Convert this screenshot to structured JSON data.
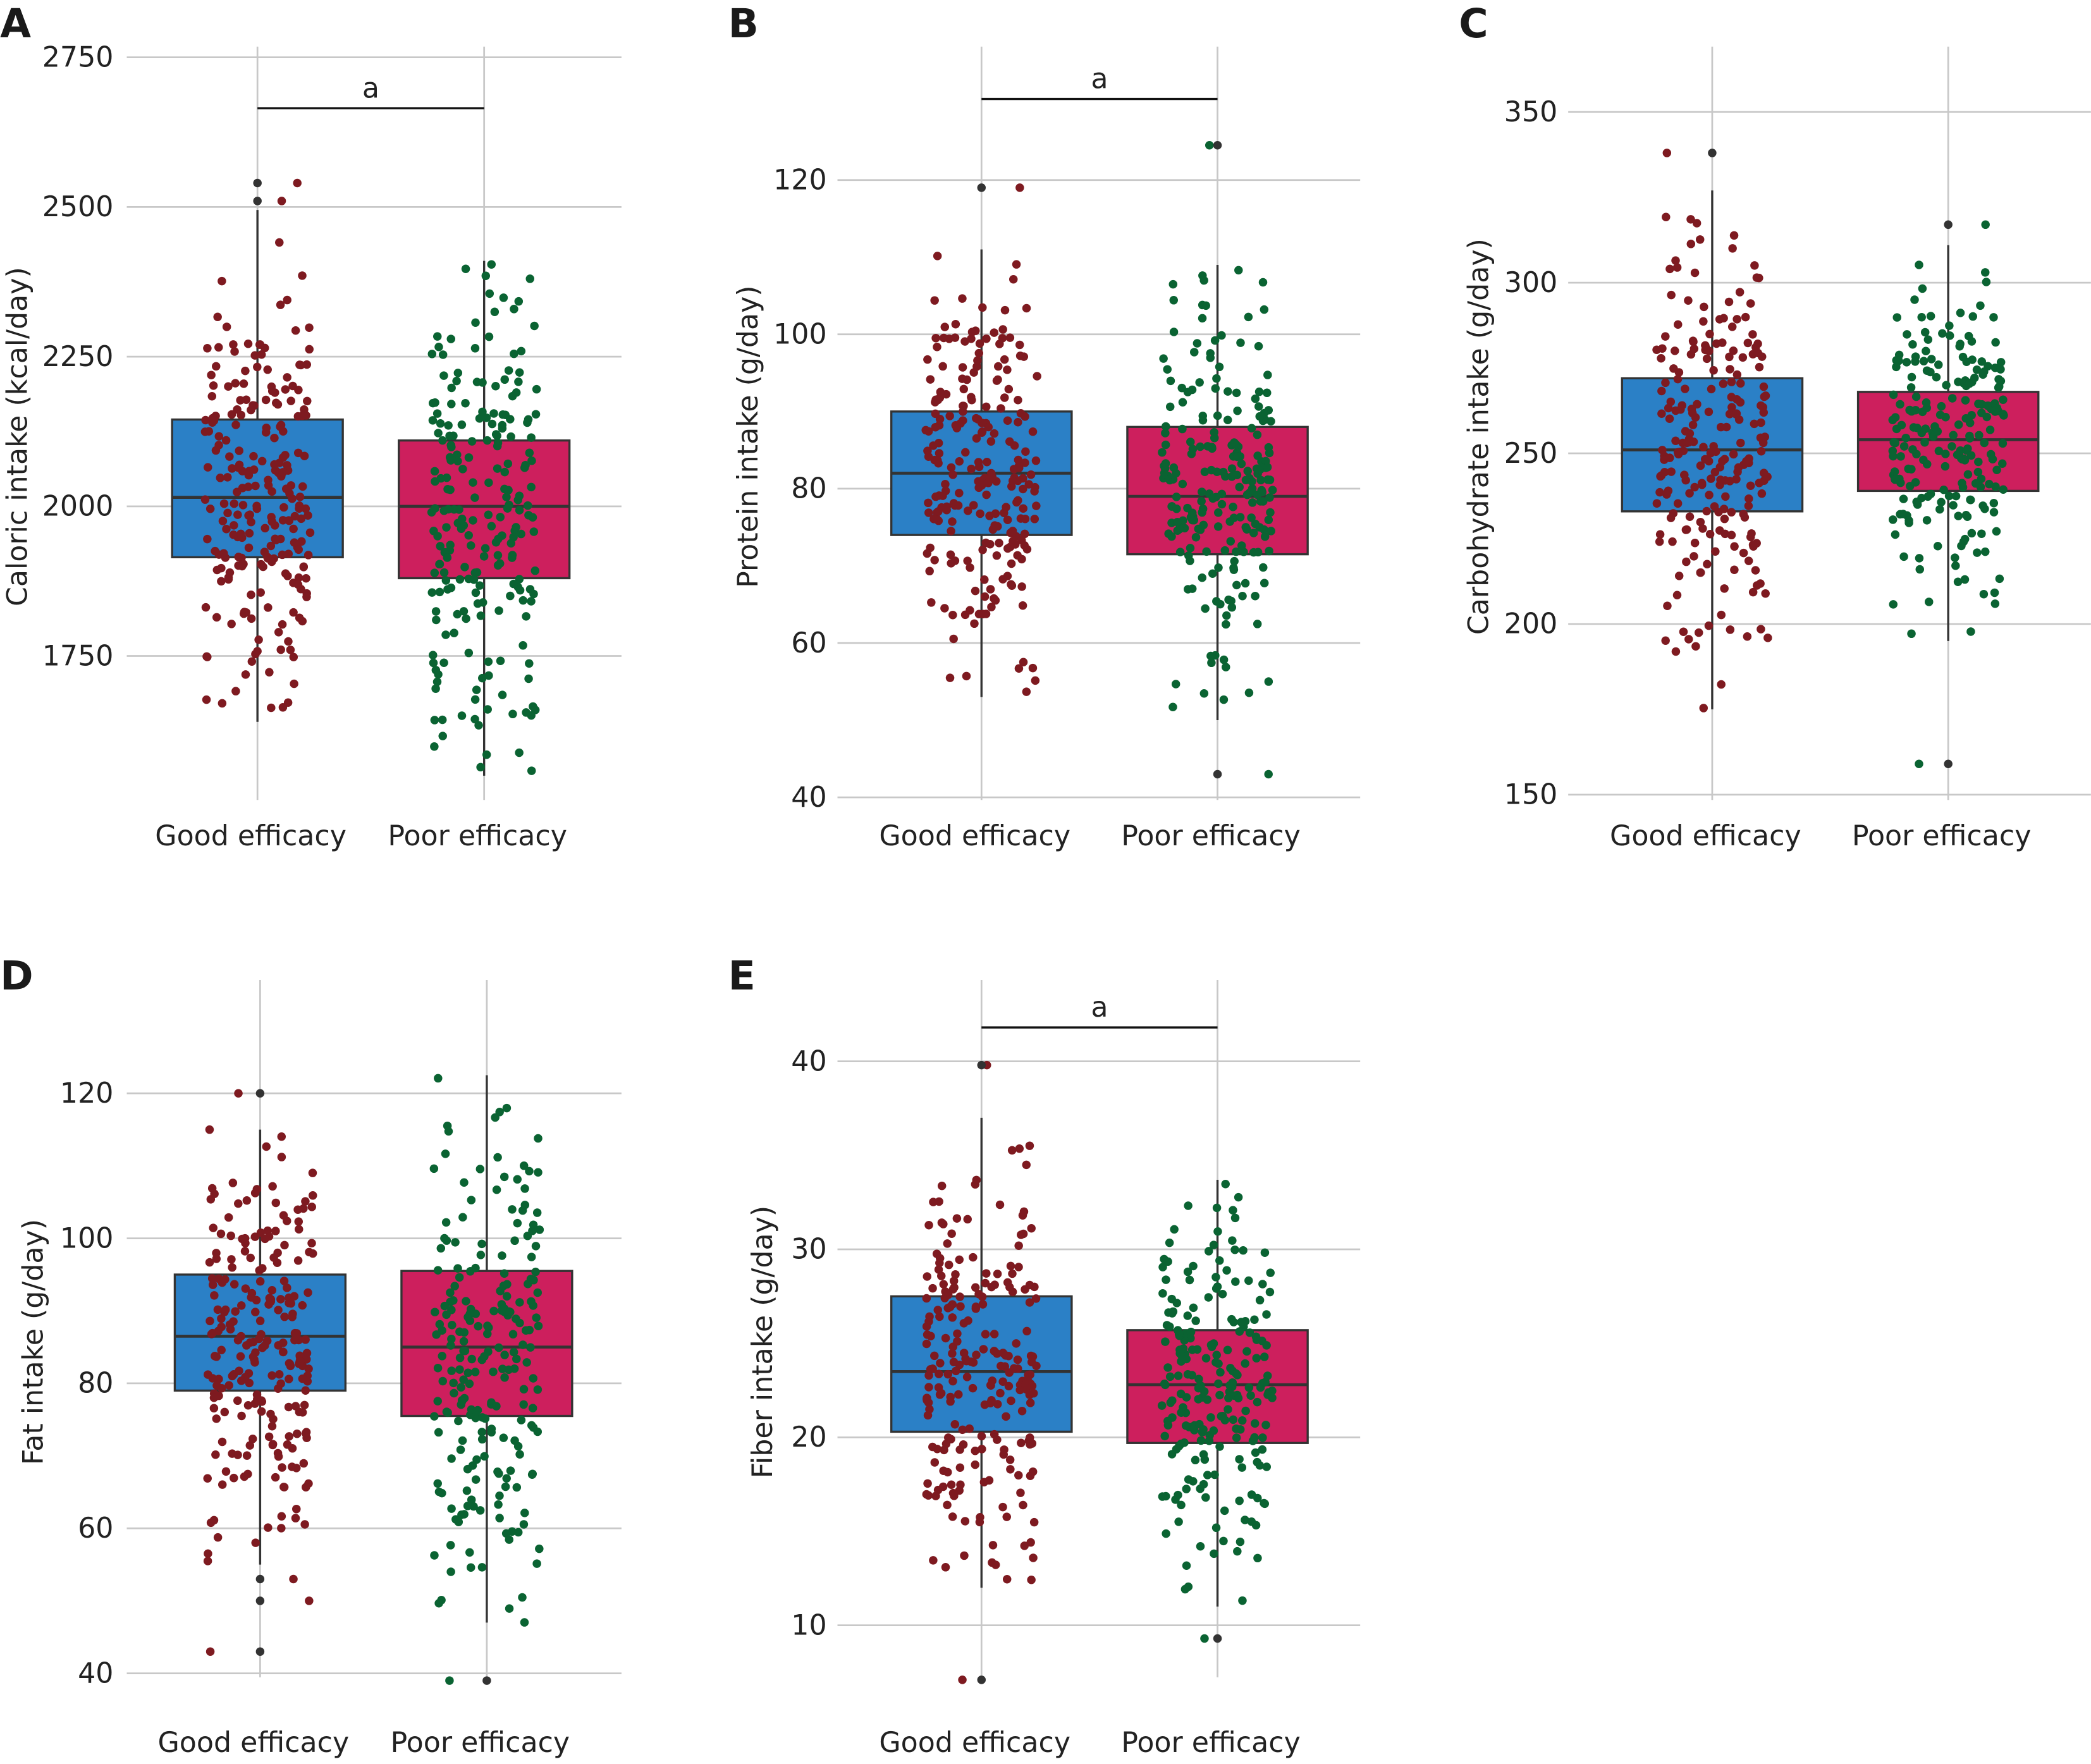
{
  "colors": {
    "good_box": "#2b80c6",
    "poor_box": "#cd1f5d",
    "good_points": "#7e1a20",
    "poor_points": "#0a6332",
    "outlier": "#333333",
    "box_edge": "#333333",
    "grid": "#c8c8c8"
  },
  "chart_data": [
    {
      "panel": "A",
      "type": "box",
      "ylabel": "Caloric intake (kcal/day)",
      "categories": [
        "Good efficacy",
        "Poor efficacy"
      ],
      "ylim": [
        1540,
        2770
      ],
      "yticks": [
        1750,
        2000,
        2250,
        2500,
        2750
      ],
      "ytick_labels": [
        "1750",
        "2000",
        "2250",
        "2500",
        "2750"
      ],
      "significance": {
        "label": "a",
        "y": 2665
      },
      "series": [
        {
          "name": "Good efficacy",
          "q1": 1915,
          "median": 2015,
          "q3": 2145,
          "whisker_low": 1640,
          "whisker_high": 2495,
          "outliers": [
            2540,
            2510
          ],
          "n": 230
        },
        {
          "name": "Poor efficacy",
          "q1": 1880,
          "median": 2000,
          "q3": 2110,
          "whisker_low": 1550,
          "whisker_high": 2410,
          "outliers": [],
          "n": 220
        }
      ]
    },
    {
      "panel": "B",
      "type": "box",
      "ylabel": "Protein intake (g/day)",
      "categories": [
        "Good efficacy",
        "Poor efficacy"
      ],
      "ylim": [
        40,
        133
      ],
      "yticks": [
        40,
        60,
        80,
        100,
        120
      ],
      "ytick_labels": [
        "40",
        "60",
        "80",
        "100",
        "120"
      ],
      "significance": {
        "label": "a",
        "y": 130.5
      },
      "series": [
        {
          "name": "Good efficacy",
          "q1": 74,
          "median": 82,
          "q3": 90,
          "whisker_low": 53,
          "whisker_high": 111,
          "outliers": [
            119
          ],
          "n": 230
        },
        {
          "name": "Poor efficacy",
          "q1": 71.5,
          "median": 79,
          "q3": 88,
          "whisker_low": 50,
          "whisker_high": 109,
          "outliers": [
            124.5,
            43
          ],
          "n": 220
        }
      ]
    },
    {
      "panel": "C",
      "type": "box",
      "ylabel": "Carbohydrate intake (g/day)",
      "categories": [
        "Good efficacy",
        "Poor efficacy"
      ],
      "ylim": [
        150,
        370
      ],
      "yticks": [
        150,
        200,
        250,
        300,
        350
      ],
      "ytick_labels": [
        "150",
        "200",
        "250",
        "300",
        "350"
      ],
      "significance": null,
      "series": [
        {
          "name": "Good efficacy",
          "q1": 233,
          "median": 251,
          "q3": 272,
          "whisker_low": 175,
          "whisker_high": 327,
          "outliers": [
            338
          ],
          "n": 230
        },
        {
          "name": "Poor efficacy",
          "q1": 239,
          "median": 254,
          "q3": 268,
          "whisker_low": 195,
          "whisker_high": 311,
          "outliers": [
            317,
            159
          ],
          "n": 220
        }
      ]
    },
    {
      "panel": "D",
      "type": "box",
      "ylabel": "Fat intake (g/day)",
      "categories": [
        "Good efficacy",
        "Poor efficacy"
      ],
      "ylim": [
        38,
        127
      ],
      "yticks": [
        40,
        60,
        80,
        100,
        120
      ],
      "ytick_labels": [
        "40",
        "60",
        "80",
        "100",
        "120"
      ],
      "significance": null,
      "series": [
        {
          "name": "Good efficacy",
          "q1": 79,
          "median": 86.5,
          "q3": 95,
          "whisker_low": 55,
          "whisker_high": 115,
          "outliers": [
            120,
            53,
            50,
            43
          ],
          "n": 230
        },
        {
          "name": "Poor efficacy",
          "q1": 75.5,
          "median": 85,
          "q3": 95.5,
          "whisker_low": 47,
          "whisker_high": 122.5,
          "outliers": [
            39
          ],
          "n": 220
        }
      ]
    },
    {
      "panel": "E",
      "type": "box",
      "ylabel": "Fiber intake (g/day)",
      "categories": [
        "Good efficacy",
        "Poor efficacy"
      ],
      "ylim": [
        6,
        44
      ],
      "yticks": [
        10,
        20,
        30,
        40
      ],
      "ytick_labels": [
        "10",
        "20",
        "30",
        "40"
      ],
      "significance": {
        "label": "a",
        "y": 41.8
      },
      "series": [
        {
          "name": "Good efficacy",
          "q1": 20.3,
          "median": 23.5,
          "q3": 27.5,
          "whisker_low": 12,
          "whisker_high": 37,
          "outliers": [
            39.8,
            7.1
          ],
          "n": 230
        },
        {
          "name": "Poor efficacy",
          "q1": 19.7,
          "median": 22.8,
          "q3": 25.7,
          "whisker_low": 11,
          "whisker_high": 33.7,
          "outliers": [
            9.3
          ],
          "n": 220
        }
      ]
    }
  ]
}
